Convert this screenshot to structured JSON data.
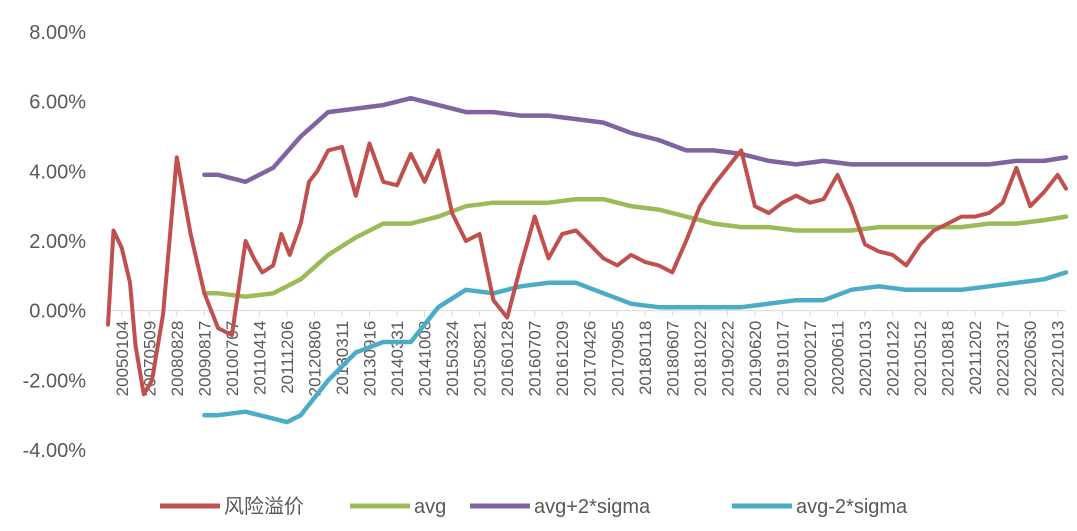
{
  "chart_data": {
    "type": "line",
    "title": "",
    "xlabel": "",
    "ylabel": "",
    "ylim": [
      -0.04,
      0.08
    ],
    "y_ticks": [
      "8.00%",
      "6.00%",
      "4.00%",
      "2.00%",
      "0.00%",
      "-2.00%",
      "-4.00%"
    ],
    "y_tick_values": [
      0.08,
      0.06,
      0.04,
      0.02,
      0.0,
      -0.02,
      -0.04
    ],
    "x_tick_labels": [
      "20050104",
      "20070509",
      "20080828",
      "20090817",
      "20100707",
      "20110414",
      "20111206",
      "20120806",
      "20130311",
      "20130916",
      "20140331",
      "20141008",
      "20150324",
      "20150821",
      "20160128",
      "20160707",
      "20161209",
      "20170426",
      "20170905",
      "20180118",
      "20180607",
      "20181022",
      "20190222",
      "20190620",
      "20191017",
      "20200217",
      "20200611",
      "20201013",
      "20210122",
      "20210512",
      "20210818",
      "20211202",
      "20220317",
      "20220630",
      "20221013"
    ],
    "grid": false,
    "legend_position": "bottom",
    "colors": {
      "风险溢价": "#c0504d",
      "avg": "#9bbb59",
      "avg+2*sigma": "#8064a2",
      "avg-2*sigma": "#4bacc6"
    },
    "series": [
      {
        "name": "风险溢价",
        "x": [
          0,
          0.2,
          0.5,
          0.8,
          1.0,
          1.3,
          1.6,
          2.0,
          2.5,
          3.0,
          3.5,
          4.0,
          4.5,
          5.0,
          5.3,
          5.6,
          6.0,
          6.3,
          6.6,
          7.0,
          7.3,
          7.6,
          8.0,
          8.5,
          9.0,
          9.5,
          10.0,
          10.5,
          11.0,
          11.5,
          12.0,
          12.5,
          13.0,
          13.5,
          14.0,
          14.5,
          15.0,
          15.5,
          16.0,
          16.5,
          17.0,
          17.5,
          18.0,
          18.5,
          19.0,
          19.5,
          20.0,
          20.5,
          21.0,
          21.5,
          22.0,
          22.5,
          23.0,
          23.5,
          24.0,
          24.5,
          25.0,
          25.5,
          26.0,
          26.5,
          27.0,
          27.5,
          28.0,
          28.5,
          29.0,
          29.5,
          30.0,
          30.5,
          31.0,
          31.5,
          32.0,
          32.5,
          33.0,
          33.5,
          34.0,
          34.5,
          34.8
        ],
        "values": [
          -0.004,
          0.023,
          0.018,
          0.008,
          -0.01,
          -0.024,
          -0.02,
          -0.001,
          0.044,
          0.022,
          0.005,
          -0.005,
          -0.007,
          0.02,
          0.015,
          0.011,
          0.013,
          0.022,
          0.016,
          0.025,
          0.037,
          0.04,
          0.046,
          0.047,
          0.033,
          0.048,
          0.037,
          0.036,
          0.045,
          0.037,
          0.046,
          0.028,
          0.02,
          0.022,
          0.003,
          -0.002,
          0.013,
          0.027,
          0.015,
          0.022,
          0.023,
          0.019,
          0.015,
          0.013,
          0.016,
          0.014,
          0.013,
          0.011,
          0.02,
          0.03,
          0.036,
          0.041,
          0.046,
          0.03,
          0.028,
          0.031,
          0.033,
          0.031,
          0.032,
          0.039,
          0.03,
          0.019,
          0.017,
          0.016,
          0.013,
          0.019,
          0.023,
          0.025,
          0.027,
          0.027,
          0.028,
          0.031,
          0.041,
          0.03,
          0.034,
          0.039,
          0.035
        ]
      },
      {
        "name": "avg",
        "x": [
          3.5,
          4.0,
          5.0,
          6.0,
          7.0,
          8.0,
          9.0,
          10.0,
          11.0,
          12.0,
          13.0,
          14.0,
          15.0,
          16.0,
          17.0,
          18.0,
          19.0,
          20.0,
          21.0,
          22.0,
          23.0,
          24.0,
          25.0,
          26.0,
          27.0,
          28.0,
          29.0,
          30.0,
          31.0,
          32.0,
          33.0,
          34.0,
          34.8
        ],
        "values": [
          0.005,
          0.005,
          0.004,
          0.005,
          0.009,
          0.016,
          0.021,
          0.025,
          0.025,
          0.027,
          0.03,
          0.031,
          0.031,
          0.031,
          0.032,
          0.032,
          0.03,
          0.029,
          0.027,
          0.025,
          0.024,
          0.024,
          0.023,
          0.023,
          0.023,
          0.024,
          0.024,
          0.024,
          0.024,
          0.025,
          0.025,
          0.026,
          0.027
        ]
      },
      {
        "name": "avg+2*sigma",
        "x": [
          3.5,
          4.0,
          5.0,
          6.0,
          7.0,
          8.0,
          9.0,
          10.0,
          11.0,
          12.0,
          13.0,
          14.0,
          15.0,
          16.0,
          17.0,
          18.0,
          19.0,
          20.0,
          21.0,
          22.0,
          23.0,
          24.0,
          25.0,
          26.0,
          27.0,
          28.0,
          29.0,
          30.0,
          31.0,
          32.0,
          33.0,
          34.0,
          34.8
        ],
        "values": [
          0.039,
          0.039,
          0.037,
          0.041,
          0.05,
          0.057,
          0.058,
          0.059,
          0.061,
          0.059,
          0.057,
          0.057,
          0.056,
          0.056,
          0.055,
          0.054,
          0.051,
          0.049,
          0.046,
          0.046,
          0.045,
          0.043,
          0.042,
          0.043,
          0.042,
          0.042,
          0.042,
          0.042,
          0.042,
          0.042,
          0.043,
          0.043,
          0.044
        ]
      },
      {
        "name": "avg-2*sigma",
        "x": [
          3.5,
          4.0,
          5.0,
          6.0,
          6.5,
          7.0,
          8.0,
          9.0,
          10.0,
          11.0,
          12.0,
          13.0,
          14.0,
          15.0,
          16.0,
          17.0,
          18.0,
          19.0,
          20.0,
          21.0,
          22.0,
          23.0,
          24.0,
          25.0,
          26.0,
          27.0,
          28.0,
          29.0,
          30.0,
          31.0,
          32.0,
          33.0,
          34.0,
          34.8
        ],
        "values": [
          -0.03,
          -0.03,
          -0.029,
          -0.031,
          -0.032,
          -0.03,
          -0.02,
          -0.012,
          -0.009,
          -0.009,
          0.001,
          0.006,
          0.005,
          0.007,
          0.008,
          0.008,
          0.005,
          0.002,
          0.001,
          0.001,
          0.001,
          0.001,
          0.002,
          0.003,
          0.003,
          0.006,
          0.007,
          0.006,
          0.006,
          0.006,
          0.007,
          0.008,
          0.009,
          0.011
        ]
      }
    ]
  }
}
